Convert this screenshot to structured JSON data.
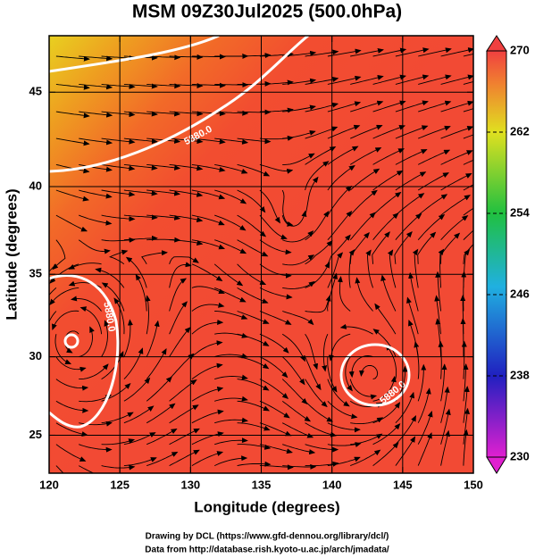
{
  "chart_data": {
    "type": "map",
    "title": "MSM 09Z30Jul2025 (500.0hPa)",
    "xlabel": "Longitude (degrees)",
    "ylabel": "Latitude  (degrees)",
    "xlim": [
      120,
      150
    ],
    "ylim": [
      22.5,
      47.8
    ],
    "xticks": [
      120,
      125,
      130,
      135,
      140,
      145,
      150
    ],
    "yticks": [
      25,
      30,
      35,
      40,
      45
    ],
    "grid": true,
    "colorbar": {
      "lim": [
        230,
        270
      ],
      "ticks": [
        230,
        238,
        246,
        254,
        262,
        270
      ]
    },
    "contour_labels": [
      "5880.0",
      "5880.0",
      "5880.0"
    ]
  },
  "credits": [
    "Drawing by DCL (https://www.gfd-dennou.org/library/dcl/)",
    "Data from http://database.rish.kyoto-u.ac.jp/arch/jmadata/"
  ]
}
